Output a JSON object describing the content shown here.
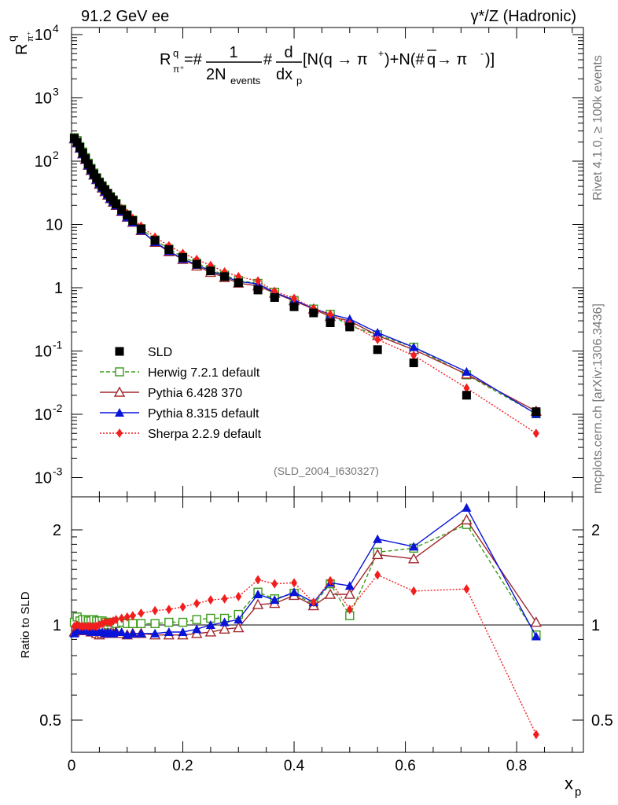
{
  "header": {
    "left": "91.2 GeV ee",
    "right": "γ*/Z (Hadronic)"
  },
  "side_labels": {
    "top": "Rivet 4.1.0, ≥ 100k events",
    "bottom": "mcplots.cern.ch [arXiv:1306.3436]"
  },
  "formula": {
    "lhs": "R",
    "lhs_sup": "q",
    "lhs_sub": "π⁺",
    "eq": "=#",
    "frac1_num": "1",
    "frac1_den": "2N",
    "frac1_den_sub": "events",
    "hash": "#",
    "frac2_num": "d",
    "frac2_den": "dx",
    "frac2_den_sub": "p",
    "tail_a": "[N(q → π",
    "tail_a_sup": "+",
    "tail_b": ")+N(#",
    "tail_q": "q",
    "tail_c": " → π",
    "tail_c_sup": "-",
    "tail_d": ")]"
  },
  "watermark": "(SLD_2004_I630327)",
  "chart_data": [
    {
      "type": "scatter",
      "title": "",
      "ylabel": "R",
      "ylabel_sup": "q",
      "ylabel_sub": "π⁺",
      "xlim": [
        0,
        0.92
      ],
      "ylim": [
        0.0005,
        15000
      ],
      "yscale": "log",
      "yticks": [
        {
          "label": "10",
          "exp": "-3"
        },
        {
          "label": "10",
          "exp": "-2"
        },
        {
          "label": "10",
          "exp": "-1"
        },
        {
          "label": "1",
          "exp": ""
        },
        {
          "label": "10",
          "exp": ""
        },
        {
          "label": "10",
          "exp": "2"
        },
        {
          "label": "10",
          "exp": "3"
        },
        {
          "label": "10",
          "exp": "4"
        }
      ],
      "legend_position": "bottom-left",
      "series": [
        {
          "name": "SLD",
          "color": "#000000",
          "marker": "square-filled",
          "line": "none",
          "x": [
            0.005,
            0.01,
            0.015,
            0.02,
            0.025,
            0.03,
            0.035,
            0.04,
            0.045,
            0.05,
            0.055,
            0.06,
            0.065,
            0.07,
            0.075,
            0.08,
            0.09,
            0.1,
            0.11,
            0.125,
            0.15,
            0.175,
            0.2,
            0.225,
            0.25,
            0.275,
            0.3,
            0.335,
            0.365,
            0.4,
            0.435,
            0.465,
            0.5,
            0.55,
            0.615,
            0.71,
            0.835
          ],
          "y": [
            230,
            200,
            165,
            135,
            110,
            90,
            75,
            63,
            54,
            46,
            40,
            35,
            31,
            27,
            24,
            21,
            17,
            14,
            11.5,
            8.5,
            5.6,
            4.0,
            3.0,
            2.35,
            1.85,
            1.5,
            1.2,
            0.92,
            0.7,
            0.5,
            0.4,
            0.28,
            0.24,
            0.105,
            0.065,
            0.02,
            0.011
          ]
        },
        {
          "name": "Herwig 7.2.1 default",
          "color": "#3a9a1a",
          "marker": "square-open",
          "line": "dashed",
          "x": [
            0.005,
            0.01,
            0.015,
            0.02,
            0.025,
            0.03,
            0.035,
            0.04,
            0.045,
            0.05,
            0.055,
            0.06,
            0.065,
            0.07,
            0.075,
            0.08,
            0.09,
            0.1,
            0.11,
            0.125,
            0.15,
            0.175,
            0.2,
            0.225,
            0.25,
            0.275,
            0.3,
            0.335,
            0.365,
            0.4,
            0.435,
            0.465,
            0.5,
            0.55,
            0.615,
            0.71,
            0.835
          ],
          "y": [
            235,
            212,
            170,
            140,
            114,
            93,
            77,
            65,
            55,
            47,
            41,
            36,
            31,
            27.5,
            24.5,
            21.5,
            17.4,
            14.2,
            11.7,
            8.6,
            5.7,
            4.1,
            3.05,
            2.45,
            1.95,
            1.58,
            1.3,
            1.17,
            0.85,
            0.63,
            0.46,
            0.38,
            0.25,
            0.18,
            0.115,
            0.042,
            0.0102
          ]
        },
        {
          "name": "Pythia 6.428 370",
          "color": "#a0282e",
          "marker": "triangle-open",
          "line": "solid",
          "x": [
            0.005,
            0.01,
            0.015,
            0.02,
            0.025,
            0.03,
            0.035,
            0.04,
            0.045,
            0.05,
            0.055,
            0.06,
            0.065,
            0.07,
            0.075,
            0.08,
            0.09,
            0.1,
            0.11,
            0.125,
            0.15,
            0.175,
            0.2,
            0.225,
            0.25,
            0.275,
            0.3,
            0.335,
            0.365,
            0.4,
            0.435,
            0.465,
            0.5,
            0.55,
            0.615,
            0.71,
            0.835
          ],
          "y": [
            225,
            195,
            160,
            130,
            106,
            86,
            71,
            60,
            51,
            43,
            37.5,
            33,
            29,
            25.5,
            22.5,
            20,
            16,
            13,
            10.8,
            8,
            5.2,
            3.7,
            2.8,
            2.2,
            1.75,
            1.45,
            1.18,
            1.07,
            0.82,
            0.62,
            0.46,
            0.35,
            0.3,
            0.175,
            0.105,
            0.043,
            0.0112
          ]
        },
        {
          "name": "Pythia 8.315 default",
          "color": "#0a14d8",
          "marker": "triangle-filled",
          "line": "solid",
          "x": [
            0.005,
            0.01,
            0.015,
            0.02,
            0.025,
            0.03,
            0.035,
            0.04,
            0.045,
            0.05,
            0.055,
            0.06,
            0.065,
            0.07,
            0.075,
            0.08,
            0.09,
            0.1,
            0.11,
            0.125,
            0.15,
            0.175,
            0.2,
            0.225,
            0.25,
            0.275,
            0.3,
            0.335,
            0.365,
            0.4,
            0.435,
            0.465,
            0.5,
            0.55,
            0.615,
            0.71,
            0.835
          ],
          "y": [
            222,
            192,
            158,
            129,
            105,
            86,
            71,
            60,
            51,
            43.5,
            38,
            33,
            29,
            25.5,
            22.5,
            20,
            16,
            13,
            10.8,
            8,
            5.25,
            3.8,
            2.85,
            2.3,
            1.85,
            1.52,
            1.25,
            1.15,
            0.84,
            0.64,
            0.47,
            0.38,
            0.32,
            0.195,
            0.115,
            0.047,
            0.0101
          ]
        },
        {
          "name": "Sherpa 2.2.9 default",
          "color": "#f21e1e",
          "marker": "diamond-filled",
          "line": "dotted",
          "x": [
            0.005,
            0.01,
            0.015,
            0.02,
            0.025,
            0.03,
            0.035,
            0.04,
            0.045,
            0.05,
            0.055,
            0.06,
            0.065,
            0.07,
            0.075,
            0.08,
            0.09,
            0.1,
            0.11,
            0.125,
            0.15,
            0.175,
            0.2,
            0.225,
            0.25,
            0.275,
            0.3,
            0.335,
            0.365,
            0.4,
            0.435,
            0.465,
            0.5,
            0.55,
            0.615,
            0.71,
            0.835
          ],
          "y": [
            228,
            198,
            163,
            133,
            108,
            89,
            74,
            62,
            53.5,
            46,
            40.5,
            36,
            31.5,
            28,
            25,
            22,
            18,
            15,
            12.5,
            9.4,
            6.3,
            4.6,
            3.5,
            2.8,
            2.25,
            1.78,
            1.5,
            1.28,
            0.88,
            0.68,
            0.47,
            0.38,
            0.27,
            0.152,
            0.085,
            0.026,
            0.005
          ]
        }
      ]
    },
    {
      "type": "line",
      "title": "",
      "ylabel": "Ratio to SLD",
      "xlabel": "x",
      "xlabel_sub": "p",
      "xlim": [
        0,
        0.92
      ],
      "ylim": [
        0.42,
        2.4
      ],
      "yscale": "log",
      "yticks": [
        "0.5",
        "1",
        "2"
      ],
      "xticks": [
        "0",
        "0.2",
        "0.4",
        "0.6",
        "0.8"
      ],
      "reference_line": 1,
      "series": [
        {
          "name": "Herwig 7.2.1 default",
          "color": "#3a9a1a",
          "marker": "square-open",
          "line": "dashed",
          "x": [
            0.005,
            0.01,
            0.015,
            0.02,
            0.025,
            0.03,
            0.035,
            0.04,
            0.045,
            0.05,
            0.055,
            0.06,
            0.065,
            0.07,
            0.075,
            0.08,
            0.09,
            0.1,
            0.11,
            0.125,
            0.15,
            0.175,
            0.2,
            0.225,
            0.25,
            0.275,
            0.3,
            0.335,
            0.365,
            0.4,
            0.435,
            0.465,
            0.5,
            0.55,
            0.615,
            0.71,
            0.835
          ],
          "y": [
            1.02,
            1.06,
            1.03,
            1.04,
            1.04,
            1.03,
            1.03,
            1.04,
            1.03,
            1.03,
            1.03,
            1.02,
            1.0,
            1.02,
            1.02,
            1.01,
            1.02,
            1.01,
            1.01,
            1.01,
            1.01,
            1.02,
            1.02,
            1.04,
            1.05,
            1.05,
            1.08,
            1.27,
            1.21,
            1.26,
            1.16,
            1.35,
            1.07,
            1.7,
            1.75,
            2.08,
            0.93
          ]
        },
        {
          "name": "Pythia 6.428 370",
          "color": "#a0282e",
          "marker": "triangle-open",
          "line": "solid",
          "x": [
            0.005,
            0.01,
            0.015,
            0.02,
            0.025,
            0.03,
            0.035,
            0.04,
            0.045,
            0.05,
            0.055,
            0.06,
            0.065,
            0.07,
            0.075,
            0.08,
            0.09,
            0.1,
            0.11,
            0.125,
            0.15,
            0.175,
            0.2,
            0.225,
            0.25,
            0.275,
            0.3,
            0.335,
            0.365,
            0.4,
            0.435,
            0.465,
            0.5,
            0.55,
            0.615,
            0.71,
            0.835
          ],
          "y": [
            0.95,
            0.97,
            0.97,
            0.96,
            0.96,
            0.96,
            0.95,
            0.95,
            0.94,
            0.93,
            0.94,
            0.94,
            0.94,
            0.94,
            0.94,
            0.95,
            0.94,
            0.93,
            0.94,
            0.94,
            0.93,
            0.93,
            0.93,
            0.94,
            0.95,
            0.97,
            0.98,
            1.16,
            1.17,
            1.24,
            1.15,
            1.25,
            1.25,
            1.67,
            1.62,
            2.15,
            1.02
          ]
        },
        {
          "name": "Pythia 8.315 default",
          "color": "#0a14d8",
          "marker": "triangle-filled",
          "line": "solid",
          "x": [
            0.005,
            0.01,
            0.015,
            0.02,
            0.025,
            0.03,
            0.035,
            0.04,
            0.045,
            0.05,
            0.055,
            0.06,
            0.065,
            0.07,
            0.075,
            0.08,
            0.09,
            0.1,
            0.11,
            0.125,
            0.15,
            0.175,
            0.2,
            0.225,
            0.25,
            0.275,
            0.3,
            0.335,
            0.365,
            0.4,
            0.435,
            0.465,
            0.5,
            0.55,
            0.615,
            0.71,
            0.835
          ],
          "y": [
            0.94,
            0.96,
            0.96,
            0.96,
            0.96,
            0.96,
            0.95,
            0.95,
            0.95,
            0.95,
            0.95,
            0.94,
            0.95,
            0.94,
            0.94,
            0.95,
            0.95,
            0.93,
            0.94,
            0.94,
            0.94,
            0.95,
            0.95,
            0.97,
            1.0,
            1.02,
            1.04,
            1.25,
            1.2,
            1.27,
            1.18,
            1.36,
            1.33,
            1.87,
            1.77,
            2.35,
            0.92
          ]
        },
        {
          "name": "Sherpa 2.2.9 default",
          "color": "#f21e1e",
          "marker": "diamond-filled",
          "line": "dotted",
          "x": [
            0.005,
            0.01,
            0.015,
            0.02,
            0.025,
            0.03,
            0.035,
            0.04,
            0.045,
            0.05,
            0.055,
            0.06,
            0.065,
            0.07,
            0.075,
            0.08,
            0.09,
            0.1,
            0.11,
            0.125,
            0.15,
            0.175,
            0.2,
            0.225,
            0.25,
            0.275,
            0.3,
            0.335,
            0.365,
            0.4,
            0.435,
            0.465,
            0.5,
            0.55,
            0.615,
            0.71,
            0.835
          ],
          "y": [
            0.99,
            1.0,
            0.99,
            0.99,
            0.99,
            0.99,
            0.99,
            0.99,
            0.99,
            1.0,
            1.01,
            1.02,
            1.02,
            1.02,
            1.03,
            1.04,
            1.05,
            1.06,
            1.07,
            1.09,
            1.11,
            1.12,
            1.14,
            1.17,
            1.2,
            1.21,
            1.23,
            1.39,
            1.35,
            1.36,
            1.18,
            1.38,
            1.12,
            1.44,
            1.28,
            1.3,
            0.45
          ]
        }
      ]
    }
  ]
}
